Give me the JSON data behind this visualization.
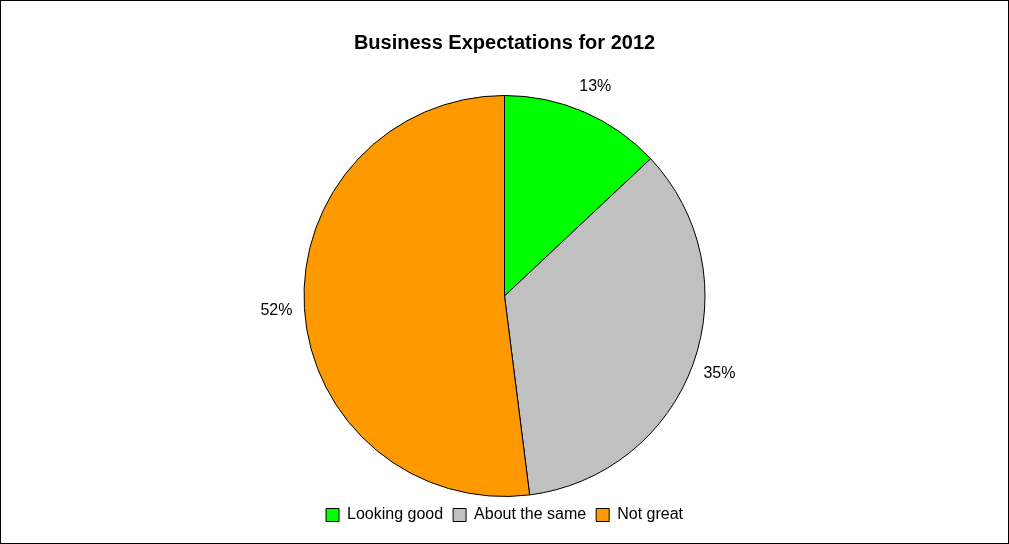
{
  "chart_data": {
    "type": "pie",
    "title": "Business Expectations for 2012",
    "categories": [
      "Looking good",
      "About the same",
      "Not great"
    ],
    "values": [
      13,
      35,
      52
    ],
    "colors": [
      "#00ff00",
      "#c0c0c0",
      "#ff9900"
    ],
    "value_labels": [
      "13%",
      "35%",
      "52%"
    ],
    "legend": "bottom"
  }
}
